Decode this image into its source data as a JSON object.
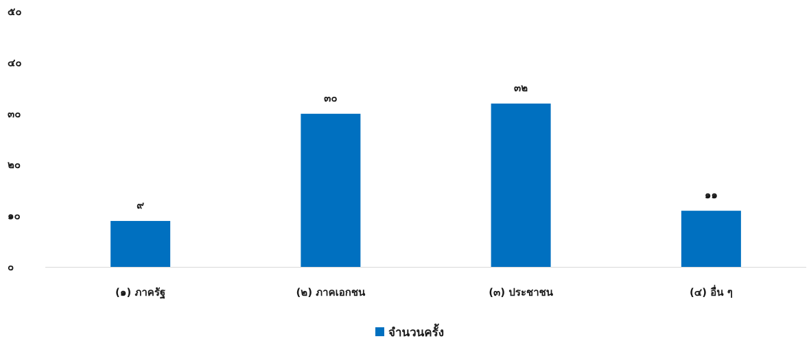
{
  "chart_data": {
    "type": "bar",
    "categories": [
      "(๑) ภาครัฐ",
      "(๒) ภาคเอกชน",
      "(๓) ประชาชน",
      "(๔) อื่น ๆ"
    ],
    "series": [
      {
        "name": "จำนวนครั้ง",
        "values": [
          9,
          30,
          32,
          11
        ],
        "value_labels": [
          "๙",
          "๓๐",
          "๓๒",
          "๑๑"
        ],
        "color": "#0070c0"
      }
    ],
    "ylim": [
      0,
      50
    ],
    "yticks": [
      0,
      10,
      20,
      30,
      40,
      50
    ],
    "ytick_labels": [
      "๐",
      "๑๐",
      "๒๐",
      "๓๐",
      "๔๐",
      "๕๐"
    ],
    "grid": false,
    "legend_position": "bottom",
    "axis_color": "#d9d9d9"
  }
}
